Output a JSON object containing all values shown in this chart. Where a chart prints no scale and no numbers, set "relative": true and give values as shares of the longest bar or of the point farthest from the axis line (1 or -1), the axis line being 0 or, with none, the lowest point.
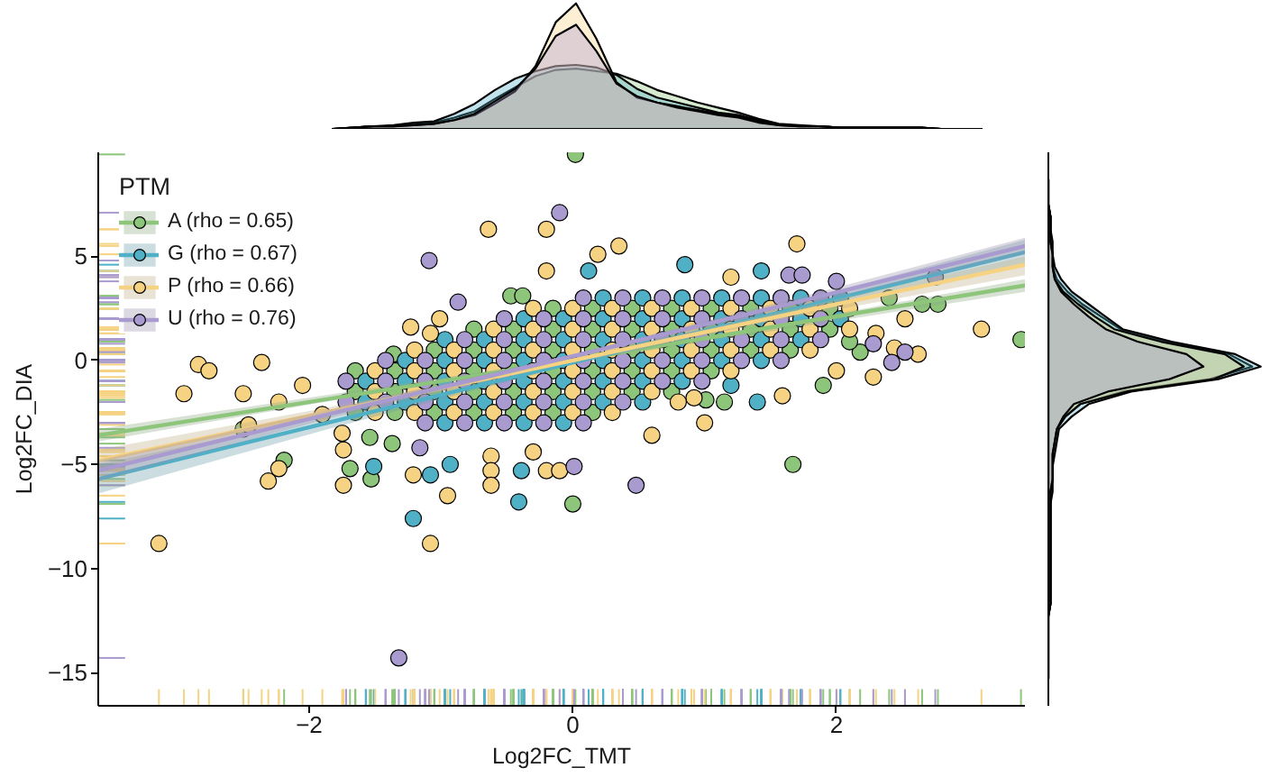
{
  "chart_data": [
    {
      "type": "area",
      "relative": true,
      "tick_labels": false,
      "categories": [
        null,
        null,
        null,
        null,
        null,
        null,
        null,
        null,
        null,
        null,
        null,
        null,
        null,
        null,
        null,
        null,
        null,
        null,
        null,
        null,
        null,
        null,
        null,
        null,
        null,
        null,
        null,
        null,
        null,
        null,
        null,
        null,
        null
      ],
      "series": [
        {
          "color": "#8dc57b",
          "values": [
            0,
            0.01,
            0.02,
            0.02,
            0.04,
            0.05,
            0.09,
            0.14,
            0.24,
            0.33,
            0.42,
            0.47,
            0.48,
            0.46,
            0.44,
            0.38,
            0.31,
            0.26,
            0.21,
            0.17,
            0.13,
            0.08,
            0.04,
            0.03,
            0.02,
            0.01,
            0.01,
            0.01,
            0.01,
            0.01,
            0,
            0,
            0
          ]
        },
        {
          "color": "#4fb0c6",
          "values": [
            0,
            0.01,
            0.02,
            0.03,
            0.05,
            0.06,
            0.12,
            0.2,
            0.31,
            0.4,
            0.46,
            0.5,
            0.51,
            0.49,
            0.43,
            0.32,
            0.25,
            0.21,
            0.17,
            0.13,
            0.11,
            0.07,
            0.03,
            0.02,
            0.02,
            0.01,
            0.01,
            0.01,
            0.01,
            0.01,
            0,
            0,
            0
          ]
        },
        {
          "color": "#f6d283",
          "values": [
            0,
            0.01,
            0.02,
            0.02,
            0.03,
            0.04,
            0.07,
            0.11,
            0.2,
            0.3,
            0.5,
            0.85,
            1,
            0.72,
            0.37,
            0.25,
            0.21,
            0.18,
            0.15,
            0.12,
            0.1,
            0.06,
            0.03,
            0.02,
            0.02,
            0.01,
            0.01,
            0.01,
            0.01,
            0.01,
            0,
            0,
            0
          ]
        },
        {
          "color": "#a99bd0",
          "values": [
            0,
            0.01,
            0.02,
            0.02,
            0.03,
            0.04,
            0.07,
            0.12,
            0.22,
            0.32,
            0.48,
            0.74,
            0.83,
            0.62,
            0.36,
            0.26,
            0.21,
            0.17,
            0.14,
            0.11,
            0.09,
            0.05,
            0.03,
            0.02,
            0.02,
            0.01,
            0.01,
            0.01,
            0.01,
            0.01,
            0,
            0,
            0
          ]
        }
      ]
    },
    {
      "type": "scatter",
      "xlabel": "Log2FC_TMT",
      "ylabel": "Log2FC_DIA",
      "legend_title": "PTM",
      "legend": "top left",
      "marker": "circle",
      "grid": false,
      "xlim": [
        -3.6,
        3.43
      ],
      "ylim": [
        -16.6,
        10
      ],
      "xticks": [
        -2,
        0,
        2
      ],
      "yticks": [
        -15,
        -10,
        -5,
        0,
        5
      ],
      "series": [
        {
          "type": "scatter",
          "name": "A (rho = 0.65)",
          "color": "#8dc57b",
          "x": [
            -1.65,
            -1.65,
            -1.65,
            -1.35,
            -1.35,
            -1.35,
            -1.05,
            -1.05,
            -1.05,
            -1.05,
            -0.75,
            -0.75,
            -0.75,
            -0.75,
            -0.75,
            -0.45,
            -0.45,
            -0.45,
            -0.45,
            -0.45,
            -0.15,
            -0.15,
            -0.15,
            -0.15,
            -0.15,
            -0.15,
            0.15,
            0.15,
            0.15,
            0.15,
            0.15,
            0.15,
            0.45,
            0.45,
            0.45,
            0.45,
            0.45,
            0.75,
            0.75,
            0.75,
            0.75,
            0.75,
            1.05,
            1.05,
            1.05,
            1.05,
            1.35,
            1.35,
            1.35,
            1.65,
            1.65,
            1.65,
            1.95,
            1.95,
            0.02,
            1.67,
            0.0,
            -2.19,
            -1.69,
            -1.53,
            -1.37,
            -1.54,
            3.4,
            2.77,
            2.65,
            1.01,
            1.15,
            2.18,
            2.1,
            -0.47,
            -0.38,
            -1.36,
            -2.5,
            1.9,
            2.4
          ],
          "values": [
            -2.5,
            -1.5,
            -0.5,
            -2.5,
            -1.5,
            -0.5,
            -2.5,
            -1.5,
            -0.5,
            0.5,
            -2.5,
            -1.5,
            -0.5,
            0.5,
            1.5,
            -2.5,
            -1.5,
            -0.5,
            0.5,
            1.5,
            -2.5,
            -1.5,
            -0.5,
            0.5,
            1.5,
            2.5,
            -2.5,
            -1.5,
            -0.5,
            0.5,
            1.5,
            2.5,
            -1.5,
            -0.5,
            0.5,
            1.5,
            2.5,
            -1.5,
            -0.5,
            0.5,
            1.5,
            2.5,
            -0.5,
            0.5,
            1.5,
            2.5,
            0.5,
            1.5,
            2.5,
            0.5,
            1.5,
            2.5,
            1.5,
            2.5,
            9.9,
            -5.0,
            -6.9,
            -4.8,
            -5.2,
            -5.7,
            -4.0,
            -3.7,
            1.0,
            2.7,
            2.7,
            -1.9,
            -2.0,
            0.4,
            0.9,
            3.1,
            3.1,
            0.3,
            -3.3,
            -1.2,
            3.0
          ]
        },
        {
          "type": "scatter",
          "name": "G (rho = 0.67)",
          "color": "#4fb0c6",
          "x": [
            -1.57,
            -1.57,
            -1.27,
            -1.27,
            -1.27,
            -0.97,
            -0.97,
            -0.97,
            -0.97,
            -0.97,
            -0.67,
            -0.67,
            -0.67,
            -0.67,
            -0.67,
            -0.37,
            -0.37,
            -0.37,
            -0.37,
            -0.37,
            -0.37,
            -0.07,
            -0.07,
            -0.07,
            -0.07,
            -0.07,
            -0.07,
            0.23,
            0.23,
            0.23,
            0.23,
            0.23,
            0.23,
            0.53,
            0.53,
            0.53,
            0.53,
            0.53,
            0.53,
            0.83,
            0.83,
            0.83,
            0.83,
            0.83,
            1.13,
            1.13,
            1.13,
            1.13,
            1.43,
            1.43,
            1.43,
            1.43,
            1.73,
            1.73,
            1.73,
            2.03,
            2.03,
            -1.21,
            -1.08,
            -1.51,
            -0.93,
            -0.39,
            -0.41,
            0.85,
            1.43,
            1.2,
            1.4,
            0.12
          ],
          "values": [
            -2,
            -1,
            -2,
            -1,
            0,
            -3,
            -2,
            -1,
            0,
            1,
            -3,
            -2,
            -1,
            0,
            1,
            -3,
            -2,
            -1,
            0,
            1,
            2,
            -3,
            -2,
            -1,
            0,
            1,
            2,
            -2,
            -1,
            0,
            1,
            2,
            3,
            -2,
            -1,
            0,
            1,
            2,
            3,
            -1,
            0,
            1,
            2,
            3,
            0,
            1,
            2,
            3,
            0,
            1,
            2,
            3,
            1,
            2,
            3,
            2,
            3,
            -7.6,
            -5.5,
            -5.1,
            -5.0,
            -5.3,
            -6.8,
            4.6,
            4.3,
            -1.2,
            -2.0,
            4.3
          ]
        },
        {
          "type": "scatter",
          "name": "P (rho = 0.66)",
          "color": "#f6d283",
          "x": [
            -1.5,
            -1.5,
            -1.5,
            -1.2,
            -1.2,
            -1.2,
            -1.2,
            -0.9,
            -0.9,
            -0.9,
            -0.9,
            -0.6,
            -0.6,
            -0.6,
            -0.6,
            -0.6,
            -0.3,
            -0.3,
            -0.3,
            -0.3,
            -0.3,
            -0.3,
            0.0,
            0.0,
            0.0,
            0.0,
            0.0,
            0.0,
            0.3,
            0.3,
            0.3,
            0.3,
            0.3,
            0.3,
            0.6,
            0.6,
            0.6,
            0.6,
            0.6,
            0.9,
            0.9,
            0.9,
            0.9,
            1.2,
            1.2,
            1.2,
            1.2,
            1.5,
            1.5,
            1.5,
            1.8,
            1.8,
            1.8,
            2.1,
            2.1,
            -3.14,
            -2.95,
            -2.84,
            -2.76,
            -2.36,
            -2.5,
            -2.23,
            -2.46,
            -2.31,
            -2.23,
            -1.74,
            -1.74,
            -1.21,
            -1.08,
            -0.95,
            -0.62,
            -0.62,
            -0.62,
            -0.2,
            -0.1,
            -0.64,
            -0.2,
            -0.2,
            0.19,
            0.35,
            1.7,
            3.1,
            2.28,
            2.0,
            2.62,
            2.44,
            2.52,
            1.59,
            0.92,
            0.8,
            -1.23,
            -1.08,
            -1.01,
            -1.9,
            -2.05,
            -1.75,
            0.6,
            1.0,
            -0.3,
            2.3,
            1.2
          ],
          "values": [
            -2.5,
            -1.5,
            -0.5,
            -2.5,
            -1.5,
            -0.5,
            0.5,
            -2.5,
            -1.5,
            -0.5,
            0.5,
            -2.5,
            -1.5,
            -0.5,
            0.5,
            1.5,
            -2.5,
            -1.5,
            -0.5,
            0.5,
            1.5,
            2.5,
            -2.5,
            -1.5,
            -0.5,
            0.5,
            1.5,
            2.5,
            -2.5,
            -1.5,
            -0.5,
            0.5,
            1.5,
            2.5,
            -1.5,
            -0.5,
            0.5,
            1.5,
            2.5,
            -0.5,
            0.5,
            1.5,
            2.5,
            -0.5,
            0.5,
            1.5,
            2.5,
            0.5,
            1.5,
            2.5,
            0.5,
            1.5,
            2.5,
            1.5,
            2.5,
            -8.8,
            -1.6,
            -0.2,
            -0.5,
            -0.1,
            -1.6,
            -2.0,
            -3.1,
            -5.8,
            -5.2,
            -4.3,
            -6.0,
            -5.5,
            -8.8,
            -6.5,
            -4.6,
            -5.3,
            -6.0,
            -5.3,
            -5.3,
            6.3,
            6.3,
            4.3,
            5.1,
            5.5,
            5.6,
            1.5,
            -0.8,
            -0.5,
            0.3,
            0.6,
            2.0,
            -1.7,
            -1.8,
            -2.0,
            1.6,
            1.3,
            2.0,
            -2.6,
            -1.2,
            -3.5,
            -3.6,
            -3.0,
            -4.4,
            1.3,
            4.0
          ]
        },
        {
          "type": "scatter",
          "name": "U (rho = 0.76)",
          "color": "#a99bd0",
          "x": [
            -1.72,
            -1.72,
            -1.42,
            -1.42,
            -1.42,
            -1.12,
            -1.12,
            -1.12,
            -1.12,
            -0.82,
            -0.82,
            -0.82,
            -0.82,
            -0.82,
            -0.52,
            -0.52,
            -0.52,
            -0.52,
            -0.52,
            -0.52,
            -0.22,
            -0.22,
            -0.22,
            -0.22,
            -0.22,
            -0.22,
            0.08,
            0.08,
            0.08,
            0.08,
            0.08,
            0.08,
            0.08,
            0.38,
            0.38,
            0.38,
            0.38,
            0.38,
            0.38,
            0.68,
            0.68,
            0.68,
            0.68,
            0.68,
            0.98,
            0.98,
            0.98,
            0.98,
            0.98,
            1.28,
            1.28,
            1.28,
            1.28,
            1.58,
            1.58,
            1.58,
            1.58,
            1.88,
            1.88,
            1.88,
            -1.32,
            -1.16,
            0.48,
            0.01,
            -1.09,
            -0.1,
            -0.87,
            1.64,
            1.74,
            2.0,
            2.42,
            2.52,
            2.28,
            2.75
          ],
          "values": [
            -2,
            -1,
            -2,
            -1,
            0,
            -3,
            -2,
            -1,
            0,
            -3,
            -2,
            -1,
            0,
            1,
            -3,
            -2,
            -1,
            0,
            1,
            2,
            -3,
            -2,
            -1,
            0,
            1,
            2,
            -3,
            -2,
            -1,
            0,
            1,
            2,
            3,
            -2,
            -1,
            0,
            1,
            2,
            3,
            -1,
            0,
            1,
            2,
            3,
            -1,
            0,
            1,
            2,
            3,
            0,
            1,
            2,
            3,
            0,
            1,
            2,
            3,
            1,
            2,
            3,
            -14.3,
            -4.2,
            -6.0,
            -5.1,
            4.8,
            7.1,
            2.8,
            4.1,
            4.1,
            3.8,
            -0.1,
            0.4,
            0.8,
            4.0
          ]
        },
        {
          "type": "line",
          "marker": "none",
          "color": "#8dc57b",
          "x": [
            -3.6,
            -1.8,
            0,
            1.7,
            3.43
          ],
          "values": [
            -3.6,
            -1.8,
            0.0,
            1.8,
            3.6
          ],
          "lower": [
            -3.9,
            -1.9,
            -0.1,
            1.6,
            3.3
          ],
          "upper": [
            -3.3,
            -1.6,
            0.1,
            1.9,
            3.9
          ]
        },
        {
          "type": "line",
          "marker": "none",
          "color": "#4fb0c6",
          "x": [
            -3.6,
            -1.8,
            0,
            1.7,
            3.43
          ],
          "values": [
            -5.7,
            -2.9,
            -0.1,
            2.5,
            5.2
          ],
          "lower": [
            -6.4,
            -3.2,
            -0.2,
            2.2,
            4.6
          ],
          "upper": [
            -5.0,
            -2.6,
            0.0,
            2.8,
            5.8
          ]
        },
        {
          "type": "line",
          "marker": "none",
          "color": "#f6d283",
          "x": [
            -3.6,
            -1.8,
            0,
            1.7,
            3.43
          ],
          "values": [
            -4.8,
            -2.4,
            0.0,
            2.3,
            4.6
          ],
          "lower": [
            -5.3,
            -2.6,
            -0.1,
            2.1,
            4.1
          ],
          "upper": [
            -4.3,
            -2.2,
            0.1,
            2.5,
            5.0
          ]
        },
        {
          "type": "line",
          "marker": "none",
          "color": "#a99bd0",
          "x": [
            -3.6,
            -1.8,
            0,
            1.7,
            3.43
          ],
          "values": [
            -5.3,
            -2.5,
            0.2,
            2.8,
            5.5
          ],
          "lower": [
            -5.8,
            -2.7,
            0.1,
            2.6,
            5.1
          ],
          "upper": [
            -4.8,
            -2.3,
            0.3,
            3.0,
            5.9
          ]
        }
      ]
    },
    {
      "type": "area",
      "orientation": "horizontal",
      "relative": true,
      "tick_labels": false,
      "ylim": [
        -16.6,
        10
      ],
      "x": [
        8.7,
        8.1,
        7.5,
        6.9,
        6.3,
        5.7,
        5.1,
        4.5,
        3.9,
        3.3,
        2.7,
        2.1,
        1.5,
        0.9,
        0.3,
        -0.3,
        -0.9,
        -1.5,
        -2.1,
        -2.7,
        -3.3,
        -3.9,
        -4.5,
        -5.1,
        -5.7,
        -6.3,
        -6.9,
        -7.5,
        -8.1,
        -8.7,
        -9.3,
        -9.9,
        -10.5,
        -11.1,
        -11.7,
        -12.3,
        -12.9,
        -13.5,
        -14.1,
        -14.7,
        -15.3
      ],
      "series": [
        {
          "color": "#8dc57b",
          "values": [
            0,
            0,
            0,
            0.01,
            0.01,
            0.01,
            0.02,
            0.02,
            0.04,
            0.09,
            0.16,
            0.25,
            0.34,
            0.56,
            0.85,
            0.96,
            0.76,
            0.35,
            0.15,
            0.08,
            0.04,
            0.03,
            0.02,
            0.02,
            0.02,
            0.01,
            0.01,
            0.01,
            0.01,
            0.01,
            0.01,
            0.01,
            0.01,
            0.01,
            0.01,
            0,
            0,
            0,
            0,
            0,
            0
          ]
        },
        {
          "color": "#4fb0c6",
          "values": [
            0,
            0,
            0,
            0.01,
            0.01,
            0.02,
            0.02,
            0.03,
            0.06,
            0.11,
            0.19,
            0.27,
            0.35,
            0.58,
            0.88,
            1,
            0.8,
            0.39,
            0.19,
            0.11,
            0.05,
            0.04,
            0.03,
            0.02,
            0.02,
            0.02,
            0.01,
            0.01,
            0.01,
            0.01,
            0.01,
            0.01,
            0.01,
            0.01,
            0.01,
            0,
            0,
            0,
            0,
            0,
            0
          ]
        },
        {
          "color": "#f6d283",
          "values": [
            0,
            0,
            0,
            0.01,
            0.01,
            0.01,
            0.02,
            0.02,
            0.03,
            0.07,
            0.14,
            0.22,
            0.31,
            0.53,
            0.83,
            0.92,
            0.78,
            0.37,
            0.15,
            0.08,
            0.04,
            0.03,
            0.02,
            0.02,
            0.02,
            0.01,
            0.01,
            0.01,
            0.01,
            0.01,
            0.01,
            0.01,
            0.01,
            0.01,
            0.01,
            0,
            0,
            0,
            0,
            0,
            0
          ]
        },
        {
          "color": "#a99bd0",
          "values": [
            0,
            0,
            0,
            0.01,
            0.01,
            0.01,
            0.02,
            0.02,
            0.03,
            0.06,
            0.12,
            0.19,
            0.27,
            0.42,
            0.65,
            0.73,
            0.57,
            0.28,
            0.12,
            0.07,
            0.04,
            0.03,
            0.02,
            0.02,
            0.02,
            0.01,
            0.01,
            0.01,
            0.01,
            0.01,
            0.01,
            0.01,
            0.01,
            0.01,
            0.01,
            0,
            0,
            0,
            0,
            0,
            0
          ]
        }
      ]
    }
  ]
}
